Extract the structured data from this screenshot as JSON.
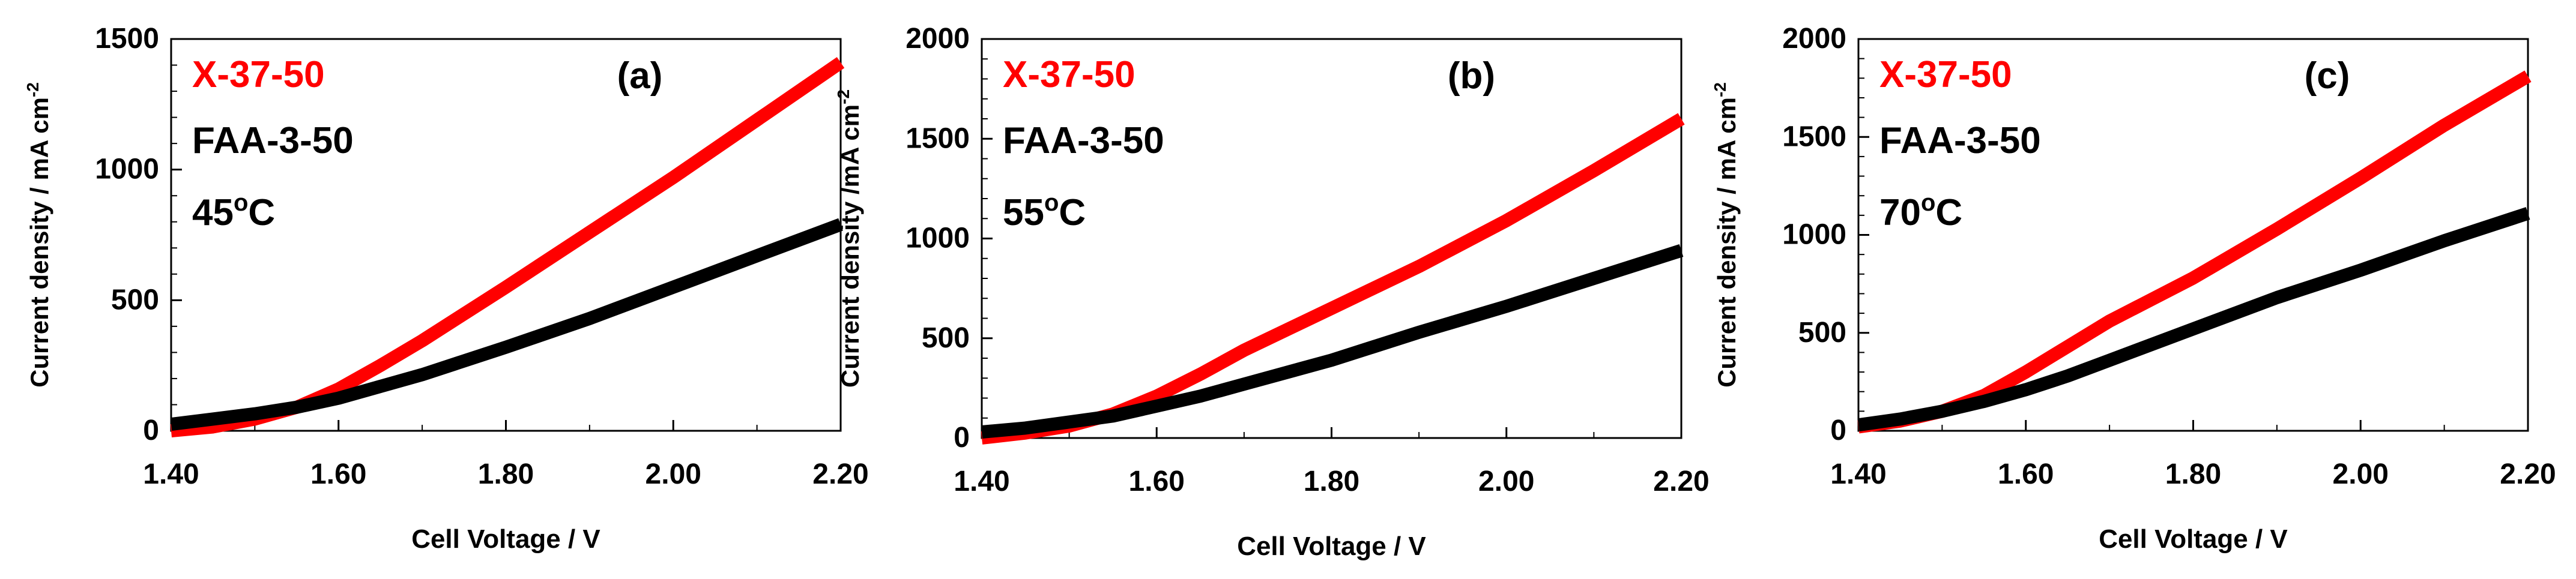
{
  "chart_data": [
    {
      "type": "line",
      "panel_label": "(a)",
      "temperature": "45",
      "temp_super": "o",
      "temp_unit": "C",
      "xlabel": "Cell Voltage / V",
      "ylabel": "Current density / mA cm",
      "ylabel_super": "-2",
      "xlim": [
        1.4,
        2.2
      ],
      "ylim": [
        0,
        1500
      ],
      "x_ticks": [
        "1.40",
        "1.60",
        "1.80",
        "2.00",
        "2.20"
      ],
      "y_ticks": [
        "0",
        "500",
        "1000",
        "1500"
      ],
      "series": [
        {
          "name": "X-37-50",
          "color": "#ff0000",
          "x": [
            1.4,
            1.45,
            1.5,
            1.55,
            1.6,
            1.65,
            1.7,
            1.8,
            1.9,
            2.0,
            2.1,
            2.2
          ],
          "y": [
            0,
            15,
            45,
            90,
            160,
            250,
            345,
            550,
            760,
            970,
            1190,
            1410
          ]
        },
        {
          "name": "FAA-3-50",
          "color": "#000000",
          "x": [
            1.4,
            1.45,
            1.5,
            1.55,
            1.6,
            1.65,
            1.7,
            1.8,
            1.9,
            2.0,
            2.1,
            2.2
          ],
          "y": [
            25,
            45,
            65,
            90,
            125,
            170,
            215,
            320,
            430,
            550,
            670,
            790
          ]
        }
      ]
    },
    {
      "type": "line",
      "panel_label": "(b)",
      "temperature": "55",
      "temp_super": "o",
      "temp_unit": "C",
      "xlabel": "Cell Voltage / V",
      "ylabel": "Current density /mA cm",
      "ylabel_super": "-2",
      "xlim": [
        1.4,
        2.2
      ],
      "ylim": [
        0,
        2000
      ],
      "x_ticks": [
        "1.40",
        "1.60",
        "1.80",
        "2.00",
        "2.20"
      ],
      "y_ticks": [
        "0",
        "500",
        "1000",
        "1500",
        "2000"
      ],
      "series": [
        {
          "name": "X-37-50",
          "color": "#ff0000",
          "x": [
            1.4,
            1.45,
            1.5,
            1.55,
            1.6,
            1.65,
            1.7,
            1.8,
            1.9,
            2.0,
            2.1,
            2.2
          ],
          "y": [
            0,
            25,
            60,
            120,
            210,
            320,
            440,
            650,
            860,
            1090,
            1340,
            1600
          ]
        },
        {
          "name": "FAA-3-50",
          "color": "#000000",
          "x": [
            1.4,
            1.45,
            1.5,
            1.55,
            1.6,
            1.65,
            1.7,
            1.8,
            1.9,
            2.0,
            2.1,
            2.2
          ],
          "y": [
            30,
            50,
            80,
            110,
            160,
            210,
            270,
            390,
            530,
            660,
            800,
            940
          ]
        }
      ]
    },
    {
      "type": "line",
      "panel_label": "(c)",
      "temperature": "70",
      "temp_super": "o",
      "temp_unit": "C",
      "xlabel": "Cell Voltage / V",
      "ylabel": "Current density / mA cm",
      "ylabel_super": "-2",
      "xlim": [
        1.4,
        2.2
      ],
      "ylim": [
        0,
        2000
      ],
      "x_ticks": [
        "1.40",
        "1.60",
        "1.80",
        "2.00",
        "2.20"
      ],
      "y_ticks": [
        "0",
        "500",
        "1000",
        "1500",
        "2000"
      ],
      "series": [
        {
          "name": "X-37-50",
          "color": "#ff0000",
          "x": [
            1.4,
            1.45,
            1.5,
            1.55,
            1.6,
            1.65,
            1.7,
            1.8,
            1.9,
            2.0,
            2.1,
            2.2
          ],
          "y": [
            20,
            50,
            100,
            180,
            300,
            430,
            560,
            780,
            1030,
            1290,
            1560,
            1810
          ]
        },
        {
          "name": "FAA-3-50",
          "color": "#000000",
          "x": [
            1.4,
            1.45,
            1.5,
            1.55,
            1.6,
            1.65,
            1.7,
            1.8,
            1.9,
            2.0,
            2.1,
            2.2
          ],
          "y": [
            30,
            60,
            100,
            150,
            210,
            280,
            360,
            520,
            680,
            820,
            970,
            1110
          ]
        }
      ]
    }
  ]
}
